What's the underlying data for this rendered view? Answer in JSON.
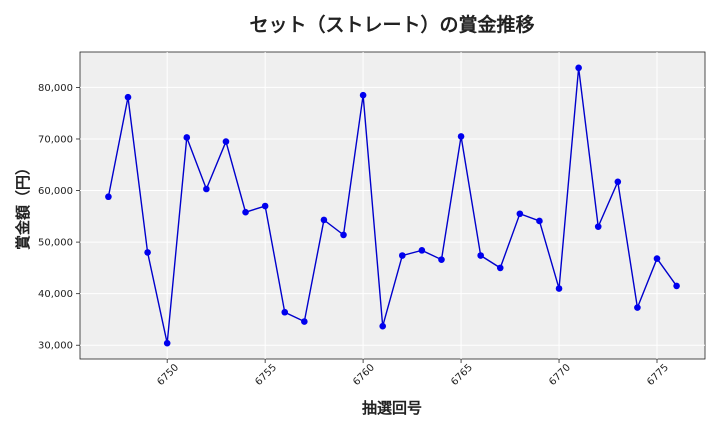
{
  "chart_data": {
    "type": "line",
    "title": "セット（ストレート）の賞金推移",
    "xlabel": "抽選回号",
    "ylabel": "賞金額（円）",
    "x": [
      6747,
      6748,
      6749,
      6750,
      6751,
      6752,
      6753,
      6754,
      6755,
      6756,
      6757,
      6758,
      6759,
      6760,
      6761,
      6762,
      6763,
      6764,
      6765,
      6766,
      6767,
      6768,
      6769,
      6770,
      6771,
      6772,
      6773,
      6774,
      6775,
      6776
    ],
    "series": [
      {
        "values": [
          58800,
          78100,
          48000,
          30400,
          70300,
          60300,
          69500,
          55800,
          57000,
          36400,
          34600,
          54300,
          51400,
          78500,
          33700,
          47400,
          48400,
          46600,
          70500,
          47400,
          45000,
          55500,
          54100,
          41000,
          83800,
          53000,
          61700,
          37300,
          46800,
          41500
        ]
      }
    ],
    "xticks": [
      6750,
      6755,
      6760,
      6765,
      6770,
      6775
    ],
    "yticks": [
      30000,
      40000,
      50000,
      60000,
      70000,
      80000
    ],
    "ytick_labels": [
      "30,000",
      "40,000",
      "50,000",
      "60,000",
      "70,000",
      "80,000"
    ],
    "xlim": [
      6745.55,
      6777.45
    ],
    "ylim": [
      27330,
      86870
    ],
    "grid": true,
    "line_color": "#0000cc",
    "marker_color": "#0000ee",
    "plot_background": "#efefef"
  }
}
